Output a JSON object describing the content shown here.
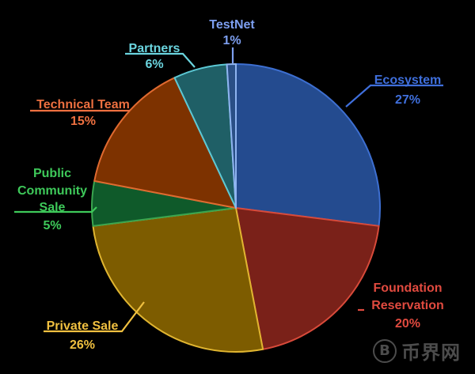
{
  "chart_data": {
    "type": "pie",
    "title": "",
    "slices": [
      {
        "name": "Ecosystem",
        "label_lines": [
          "Ecosystem"
        ],
        "pct_label": "27%",
        "value": 27,
        "color": "#244b8f",
        "edge": "#3d6fd1",
        "text_color": "#3f6fdc"
      },
      {
        "name": "Foundation Reservation",
        "label_lines": [
          "Foundation",
          "Reservation"
        ],
        "pct_label": "20%",
        "value": 20,
        "color": "#7a2119",
        "edge": "#d84a3a",
        "text_color": "#e04a3f"
      },
      {
        "name": "Private Sale",
        "label_lines": [
          "Private Sale"
        ],
        "pct_label": "26%",
        "value": 26,
        "color": "#7d5c00",
        "edge": "#e0b530",
        "text_color": "#f0c040"
      },
      {
        "name": "Public Community Sale",
        "label_lines": [
          "Public",
          "Community",
          "Sale"
        ],
        "pct_label": "5%",
        "value": 5,
        "color": "#0f5a2a",
        "edge": "#3aa54f",
        "text_color": "#3ec95a"
      },
      {
        "name": "Technical Team",
        "label_lines": [
          "Technical Team"
        ],
        "pct_label": "15%",
        "value": 15,
        "color": "#7d3200",
        "edge": "#e06a30",
        "text_color": "#ee7040"
      },
      {
        "name": "Partners",
        "label_lines": [
          "Partners"
        ],
        "pct_label": "6%",
        "value": 6,
        "color": "#1f5f66",
        "edge": "#5cc8d4",
        "text_color": "#6ad4de"
      },
      {
        "name": "TestNet",
        "label_lines": [
          "TestNet"
        ],
        "pct_label": "1%",
        "value": 1,
        "color": "#2a4f86",
        "edge": "#8fb4f0",
        "text_color": "#7d9ff0"
      }
    ]
  },
  "watermark": {
    "symbol": "B",
    "text": "币界网"
  }
}
